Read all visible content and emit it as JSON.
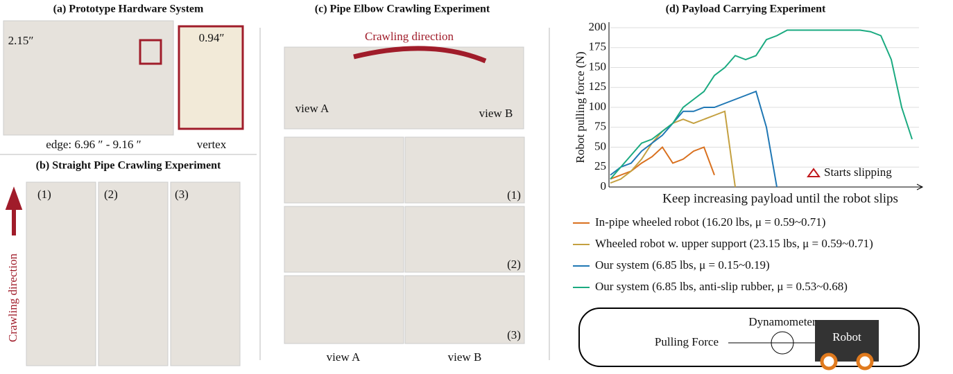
{
  "panels": {
    "a": {
      "title": "(a) Prototype Hardware System",
      "size_label": "2.15″",
      "vertex_size": "0.94″",
      "edge": "edge: 6.96 ″ - 9.16 ″",
      "vertex": "vertex"
    },
    "b": {
      "title": "(b) Straight Pipe Crawling Experiment",
      "steps": [
        "(1)",
        "(2)",
        "(3)"
      ],
      "direction": "Crawling direction"
    },
    "c": {
      "title": "(c) Pipe Elbow Crawling Experiment",
      "direction": "Crawling direction",
      "view_a": "view A",
      "view_b": "view B",
      "steps": [
        "(1)",
        "(2)",
        "(3)"
      ],
      "captions": [
        "view A",
        "view B"
      ]
    },
    "d": {
      "slip_legend": "Starts slipping",
      "dynamometer": "Dynamometer",
      "pulling_force": "Pulling Force",
      "robot": "Robot"
    }
  },
  "chart_data": {
    "type": "line",
    "title": "(d) Payload Carrying Experiment",
    "x_label": "Keep increasing payload until the robot slips",
    "y_label": "Robot pulling force (N)",
    "categories": [
      null,
      null,
      null,
      null,
      null,
      null,
      null,
      null,
      null,
      null,
      null,
      null,
      null,
      null,
      null,
      null,
      null,
      null,
      null,
      null,
      null,
      null,
      null,
      null,
      null,
      null,
      null,
      null,
      null,
      null
    ],
    "ylim": [
      0,
      200
    ],
    "yticks": [
      0,
      25,
      50,
      75,
      100,
      125,
      150,
      175,
      200
    ],
    "grid": true,
    "series": [
      {
        "name": "In-pipe wheeled robot (16.20 lbs, μ = 0.59~0.71)",
        "color": "#d9701e",
        "values": [
          10,
          15,
          20,
          30,
          38,
          50,
          30,
          35,
          45,
          50,
          15,
          null,
          null,
          null,
          null,
          null,
          null,
          null,
          null,
          null,
          null,
          null,
          null,
          null,
          null,
          null,
          null,
          null,
          null,
          null
        ]
      },
      {
        "name": "Wheeled robot w. upper support (23.15  lbs, μ = 0.59~0.71)",
        "color": "#c4a040",
        "values": [
          5,
          10,
          20,
          35,
          55,
          70,
          80,
          85,
          80,
          85,
          90,
          95,
          0,
          null,
          null,
          null,
          null,
          null,
          null,
          null,
          null,
          null,
          null,
          null,
          null,
          null,
          null,
          null,
          null,
          null
        ]
      },
      {
        "name": "Our system (6.85 lbs, μ = 0.15~0.19)",
        "color": "#1f77b4",
        "values": [
          15,
          25,
          30,
          45,
          55,
          65,
          80,
          95,
          95,
          100,
          100,
          105,
          110,
          115,
          120,
          75,
          0,
          null,
          null,
          null,
          null,
          null,
          null,
          null,
          null,
          null,
          null,
          null,
          null,
          null
        ]
      },
      {
        "name": "Our system (6.85 lbs, anti-slip rubber, μ = 0.53~0.68)",
        "color": "#1aaa80",
        "values": [
          10,
          25,
          40,
          55,
          60,
          70,
          80,
          100,
          110,
          120,
          140,
          150,
          165,
          160,
          165,
          185,
          190,
          197,
          197,
          197,
          197,
          197,
          197,
          197,
          197,
          195,
          190,
          160,
          100,
          60
        ]
      }
    ]
  }
}
